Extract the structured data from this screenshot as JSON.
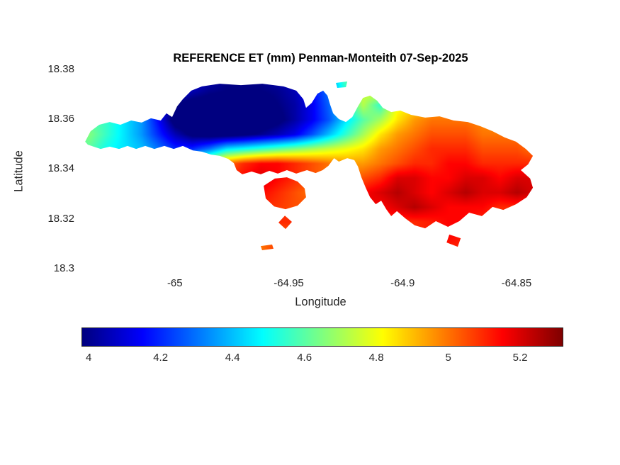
{
  "chart_data": {
    "type": "heatmap",
    "title": "REFERENCE ET (mm) Penman-Monteith 07-Sep-2025",
    "xlabel": "Longitude",
    "ylabel": "Latitude",
    "xlim": [
      -65.041,
      -64.831
    ],
    "ylim": [
      18.298,
      18.38
    ],
    "xticks": [
      {
        "value": -65,
        "label": "-65"
      },
      {
        "value": -64.95,
        "label": "-64.95"
      },
      {
        "value": -64.9,
        "label": "-64.9"
      },
      {
        "value": -64.85,
        "label": "-64.85"
      }
    ],
    "yticks": [
      {
        "value": 18.38,
        "label": "18.38"
      },
      {
        "value": 18.36,
        "label": "18.36"
      },
      {
        "value": 18.34,
        "label": "18.34"
      },
      {
        "value": 18.32,
        "label": "18.32"
      },
      {
        "value": 18.3,
        "label": "18.3"
      }
    ],
    "colormap": "jet",
    "color_scale": {
      "min": 3.98,
      "max": 5.32,
      "ticks": [
        {
          "value": 4,
          "label": "4"
        },
        {
          "value": 4.2,
          "label": "4.2"
        },
        {
          "value": 4.4,
          "label": "4.4"
        },
        {
          "value": 4.6,
          "label": "4.6"
        },
        {
          "value": 4.8,
          "label": "4.8"
        },
        {
          "value": 5,
          "label": "5"
        },
        {
          "value": 5.2,
          "label": "5.2"
        }
      ]
    },
    "grid": {
      "cols": 28,
      "rows": 14,
      "note": "Reference ET (mm) sampled on a lon/lat grid spanning xlim/ylim, rows north to south",
      "values": [
        [
          4.6,
          4.6,
          4.5,
          4.4,
          4.3,
          4.2,
          4.1,
          4.05,
          4.0,
          4.0,
          4.0,
          4.05,
          4.1,
          4.2,
          4.35,
          4.6,
          4.75,
          4.8,
          4.8,
          4.85,
          4.9,
          4.9,
          4.9,
          4.9,
          4.9,
          4.9,
          4.9,
          4.9
        ],
        [
          4.6,
          4.6,
          4.5,
          4.4,
          4.3,
          4.15,
          4.05,
          4.0,
          3.98,
          3.98,
          3.98,
          4.0,
          4.05,
          4.15,
          4.3,
          4.55,
          4.75,
          4.8,
          4.78,
          4.85,
          4.9,
          4.92,
          4.92,
          4.92,
          4.92,
          4.92,
          4.92,
          4.92
        ],
        [
          4.55,
          4.55,
          4.5,
          4.4,
          4.2,
          3.95,
          3.93,
          3.93,
          3.93,
          3.9,
          3.93,
          3.98,
          4.03,
          4.13,
          4.28,
          4.5,
          4.72,
          4.55,
          4.8,
          4.85,
          4.9,
          4.95,
          4.95,
          4.95,
          4.95,
          4.95,
          4.95,
          4.95
        ],
        [
          4.6,
          4.55,
          4.45,
          4.35,
          4.15,
          3.92,
          3.9,
          3.9,
          3.88,
          3.88,
          3.9,
          3.95,
          4.03,
          4.13,
          4.26,
          4.45,
          4.6,
          4.7,
          4.85,
          4.95,
          5.0,
          5.0,
          5.0,
          4.97,
          4.93,
          4.9,
          4.9,
          4.9
        ],
        [
          4.65,
          4.55,
          4.45,
          4.35,
          4.2,
          4.05,
          3.95,
          3.92,
          3.92,
          3.95,
          4.0,
          4.05,
          4.12,
          4.25,
          4.4,
          4.55,
          4.7,
          4.85,
          4.95,
          5.0,
          5.05,
          5.05,
          5.05,
          5.0,
          5.0,
          5.0,
          5.0,
          5.0
        ],
        [
          4.6,
          4.5,
          4.45,
          4.4,
          4.3,
          4.2,
          4.2,
          4.3,
          4.45,
          4.5,
          4.55,
          4.6,
          4.65,
          4.7,
          4.75,
          4.8,
          4.85,
          4.95,
          5.0,
          5.05,
          5.1,
          5.1,
          5.1,
          5.05,
          5.05,
          5.05,
          5.0,
          5.0
        ],
        [
          4.6,
          4.55,
          4.5,
          4.45,
          4.45,
          4.5,
          4.6,
          4.8,
          5.0,
          5.1,
          5.15,
          5.15,
          5.1,
          5.05,
          5.0,
          4.95,
          4.95,
          5.0,
          5.05,
          5.1,
          5.1,
          5.15,
          5.15,
          5.1,
          5.1,
          5.1,
          5.1,
          5.1
        ],
        [
          4.6,
          4.6,
          4.6,
          4.7,
          4.8,
          4.9,
          5.0,
          5.05,
          5.1,
          5.15,
          5.2,
          5.15,
          5.1,
          5.05,
          5.0,
          5.0,
          5.05,
          5.1,
          5.2,
          5.2,
          5.15,
          5.15,
          5.2,
          5.2,
          5.15,
          5.2,
          5.2,
          5.2
        ],
        [
          4.7,
          4.7,
          4.75,
          4.8,
          4.85,
          4.9,
          5.0,
          5.05,
          5.1,
          5.12,
          5.15,
          5.1,
          5.05,
          5.0,
          5.05,
          5.1,
          5.15,
          5.2,
          5.25,
          5.2,
          5.15,
          5.2,
          5.25,
          5.2,
          5.2,
          5.25,
          5.2,
          5.2
        ],
        [
          4.7,
          4.72,
          4.75,
          4.8,
          4.85,
          4.9,
          4.95,
          5.0,
          5.05,
          5.1,
          5.1,
          5.08,
          5.05,
          5.05,
          5.1,
          5.15,
          5.2,
          5.15,
          5.2,
          5.25,
          5.2,
          5.15,
          5.15,
          5.15,
          5.1,
          5.1,
          5.1,
          5.1
        ],
        [
          4.75,
          4.78,
          4.8,
          4.85,
          4.9,
          4.92,
          4.95,
          5.0,
          5.05,
          5.08,
          5.1,
          5.1,
          5.1,
          5.05,
          5.05,
          5.05,
          5.1,
          5.1,
          5.1,
          5.1,
          5.12,
          5.15,
          5.15,
          5.1,
          5.1,
          5.1,
          5.05,
          5.05
        ],
        [
          4.8,
          4.8,
          4.82,
          4.85,
          4.88,
          4.9,
          4.92,
          4.95,
          4.98,
          5.0,
          5.0,
          5.02,
          5.03,
          5.0,
          5.0,
          5.02,
          5.05,
          5.05,
          5.08,
          5.1,
          5.12,
          5.15,
          5.12,
          5.1,
          5.08,
          5.05,
          5.02,
          5.0
        ],
        [
          4.8,
          4.8,
          4.8,
          4.82,
          4.85,
          4.88,
          4.9,
          4.92,
          4.95,
          4.98,
          5.0,
          5.1,
          5.0,
          4.98,
          4.98,
          5.0,
          5.0,
          5.02,
          5.05,
          5.05,
          5.08,
          5.1,
          5.1,
          5.05,
          5.05,
          5.0,
          5.0,
          5.0
        ],
        [
          4.8,
          4.8,
          4.8,
          4.82,
          4.85,
          4.88,
          4.9,
          4.92,
          4.95,
          4.98,
          5.0,
          5.05,
          5.0,
          4.98,
          4.98,
          5.0,
          5.0,
          5.02,
          5.05,
          5.05,
          5.08,
          5.1,
          5.1,
          5.05,
          5.05,
          5.0,
          5.0,
          5.0
        ]
      ]
    },
    "region": {
      "outline": [
        [
          -65.0394,
          18.3507
        ],
        [
          -65.037,
          18.3549
        ],
        [
          -65.0332,
          18.3575
        ],
        [
          -65.0286,
          18.3586
        ],
        [
          -65.0239,
          18.3575
        ],
        [
          -65.0192,
          18.3592
        ],
        [
          -65.0146,
          18.3584
        ],
        [
          -65.0105,
          18.3601
        ],
        [
          -65.0062,
          18.3592
        ],
        [
          -65.0037,
          18.3621
        ],
        [
          -65.0012,
          18.3606
        ],
        [
          -64.999,
          18.3649
        ],
        [
          -64.9965,
          18.3678
        ],
        [
          -64.9928,
          18.3712
        ],
        [
          -64.9881,
          18.3729
        ],
        [
          -64.9803,
          18.374
        ],
        [
          -64.971,
          18.3734
        ],
        [
          -64.9616,
          18.374
        ],
        [
          -64.9523,
          18.3729
        ],
        [
          -64.9467,
          18.3712
        ],
        [
          -64.9436,
          18.3678
        ],
        [
          -64.9424,
          18.3643
        ],
        [
          -64.9399,
          18.3663
        ],
        [
          -64.9374,
          18.37
        ],
        [
          -64.9349,
          18.3712
        ],
        [
          -64.933,
          18.3692
        ],
        [
          -64.9318,
          18.3655
        ],
        [
          -64.9305,
          18.3621
        ],
        [
          -64.928,
          18.3598
        ],
        [
          -64.9249,
          18.3586
        ],
        [
          -64.9221,
          18.3606
        ],
        [
          -64.9196,
          18.3649
        ],
        [
          -64.9174,
          18.3683
        ],
        [
          -64.9143,
          18.3692
        ],
        [
          -64.9112,
          18.3672
        ],
        [
          -64.9087,
          18.3643
        ],
        [
          -64.905,
          18.3626
        ],
        [
          -64.901,
          18.3632
        ],
        [
          -64.8963,
          18.3615
        ],
        [
          -64.8901,
          18.3604
        ],
        [
          -64.8838,
          18.3609
        ],
        [
          -64.8776,
          18.3592
        ],
        [
          -64.8714,
          18.3586
        ],
        [
          -64.8658,
          18.3569
        ],
        [
          -64.8605,
          18.3549
        ],
        [
          -64.8552,
          18.3524
        ],
        [
          -64.8502,
          18.3507
        ],
        [
          -64.8459,
          18.3478
        ],
        [
          -64.8428,
          18.345
        ],
        [
          -64.8449,
          18.3416
        ],
        [
          -64.8481,
          18.3393
        ],
        [
          -64.844,
          18.3359
        ],
        [
          -64.8428,
          18.3322
        ],
        [
          -64.8455,
          18.3284
        ],
        [
          -64.8502,
          18.3256
        ],
        [
          -64.8558,
          18.3233
        ],
        [
          -64.8605,
          18.3245
        ],
        [
          -64.8652,
          18.3208
        ],
        [
          -64.8708,
          18.3222
        ],
        [
          -64.8751,
          18.3188
        ],
        [
          -64.8801,
          18.3165
        ],
        [
          -64.8854,
          18.3188
        ],
        [
          -64.8901,
          18.3159
        ],
        [
          -64.8947,
          18.3171
        ],
        [
          -64.8988,
          18.3199
        ],
        [
          -64.9025,
          18.3228
        ],
        [
          -64.905,
          18.3208
        ],
        [
          -64.9072,
          18.3236
        ],
        [
          -64.9094,
          18.327
        ],
        [
          -64.9118,
          18.3256
        ],
        [
          -64.9143,
          18.3284
        ],
        [
          -64.9162,
          18.3322
        ],
        [
          -64.9181,
          18.3364
        ],
        [
          -64.9196,
          18.3407
        ],
        [
          -64.9212,
          18.3433
        ],
        [
          -64.9243,
          18.3441
        ],
        [
          -64.928,
          18.3427
        ],
        [
          -64.9301,
          18.3441
        ],
        [
          -64.9326,
          18.341
        ],
        [
          -64.9351,
          18.3393
        ],
        [
          -64.9382,
          18.3381
        ],
        [
          -64.942,
          18.3393
        ],
        [
          -64.9467,
          18.3379
        ],
        [
          -64.9508,
          18.3393
        ],
        [
          -64.9548,
          18.3379
        ],
        [
          -64.9585,
          18.339
        ],
        [
          -64.9623,
          18.3376
        ],
        [
          -64.9663,
          18.3387
        ],
        [
          -64.9704,
          18.3376
        ],
        [
          -64.9729,
          18.3393
        ],
        [
          -64.9741,
          18.3421
        ],
        [
          -64.9766,
          18.3438
        ],
        [
          -64.9803,
          18.345
        ],
        [
          -64.9841,
          18.3455
        ],
        [
          -64.9881,
          18.3467
        ],
        [
          -64.9921,
          18.3472
        ],
        [
          -64.9965,
          18.349
        ],
        [
          -65.0005,
          18.3478
        ],
        [
          -65.0046,
          18.349
        ],
        [
          -65.009,
          18.3478
        ],
        [
          -65.013,
          18.349
        ],
        [
          -65.017,
          18.3478
        ],
        [
          -65.0208,
          18.349
        ],
        [
          -65.0245,
          18.3478
        ],
        [
          -65.0286,
          18.3487
        ],
        [
          -65.0326,
          18.3478
        ],
        [
          -65.0357,
          18.3487
        ],
        [
          -65.0382,
          18.3495
        ]
      ],
      "islets": [
        [
          [
            -64.961,
            18.333
          ],
          [
            -64.9561,
            18.3359
          ],
          [
            -64.9508,
            18.3364
          ],
          [
            -64.9461,
            18.3347
          ],
          [
            -64.943,
            18.3319
          ],
          [
            -64.9424,
            18.3284
          ],
          [
            -64.9461,
            18.325
          ],
          [
            -64.9514,
            18.3236
          ],
          [
            -64.9564,
            18.3247
          ],
          [
            -64.9601,
            18.3279
          ]
        ],
        [
          [
            -64.9517,
            18.321
          ],
          [
            -64.9486,
            18.3185
          ],
          [
            -64.9514,
            18.3156
          ],
          [
            -64.9545,
            18.3182
          ]
        ],
        [
          [
            -64.9623,
            18.3088
          ],
          [
            -64.9573,
            18.3094
          ],
          [
            -64.9567,
            18.3077
          ],
          [
            -64.9617,
            18.3071
          ]
        ],
        [
          [
            -64.8795,
            18.3134
          ],
          [
            -64.8745,
            18.3119
          ],
          [
            -64.8758,
            18.3085
          ],
          [
            -64.8807,
            18.3102
          ]
        ],
        [
          [
            -64.9293,
            18.3743
          ],
          [
            -64.9243,
            18.3749
          ],
          [
            -64.9249,
            18.3726
          ],
          [
            -64.9287,
            18.3723
          ]
        ]
      ]
    },
    "text_color": "#262626",
    "background": "#ffffff"
  }
}
